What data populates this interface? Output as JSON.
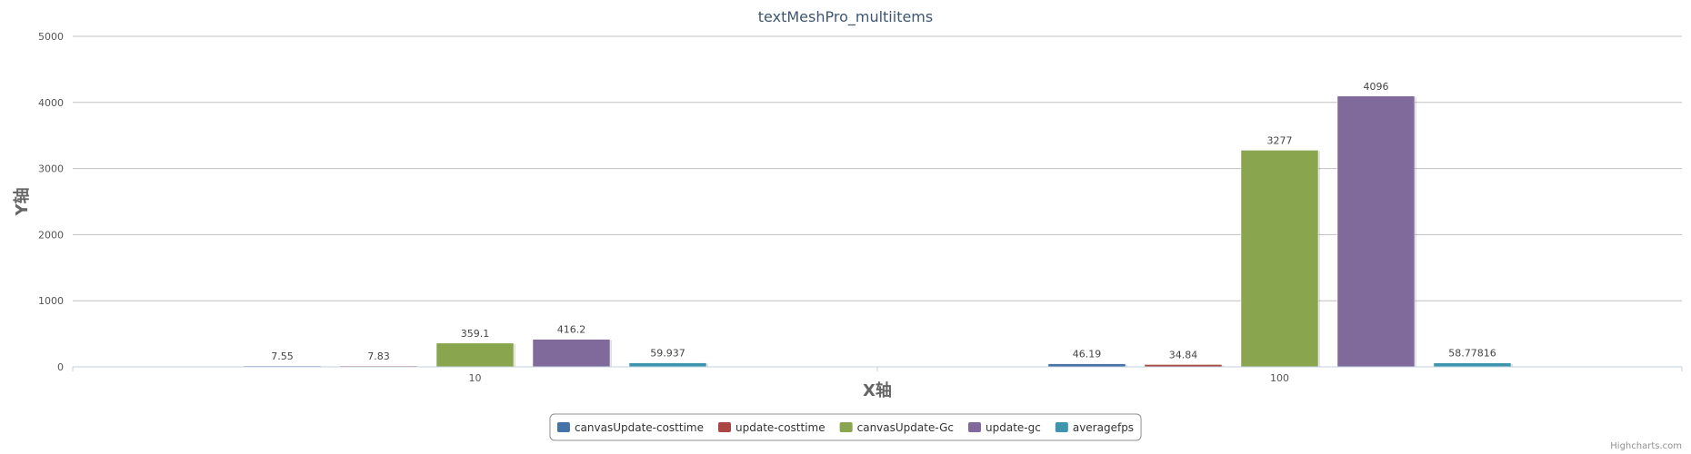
{
  "chart_data": {
    "type": "bar",
    "title": "textMeshPro_multiitems",
    "xlabel": "X轴",
    "ylabel": "Y轴",
    "categories": [
      "10",
      "100"
    ],
    "ylim": [
      0,
      5000
    ],
    "yticks": [
      0,
      1000,
      2000,
      3000,
      4000,
      5000
    ],
    "grid": true,
    "legend": "bottom-center",
    "series": [
      {
        "name": "canvasUpdate-costtime",
        "color": "#4572A7",
        "values": [
          7.55,
          46.19
        ],
        "labels": [
          "7.55",
          "46.19"
        ]
      },
      {
        "name": "update-costtime",
        "color": "#AA4643",
        "values": [
          7.83,
          34.84
        ],
        "labels": [
          "7.83",
          "34.84"
        ]
      },
      {
        "name": "canvasUpdate-Gc",
        "color": "#89A54E",
        "values": [
          359.1,
          3277
        ],
        "labels": [
          "359.1",
          "3277"
        ]
      },
      {
        "name": "update-gc",
        "color": "#80699B",
        "values": [
          416.2,
          4096
        ],
        "labels": [
          "416.2",
          "4096"
        ]
      },
      {
        "name": "averagefps",
        "color": "#3D96AE",
        "values": [
          59.937,
          58.77816
        ],
        "labels": [
          "59.937",
          "58.77816"
        ]
      }
    ]
  },
  "credits": "Highcharts.com"
}
